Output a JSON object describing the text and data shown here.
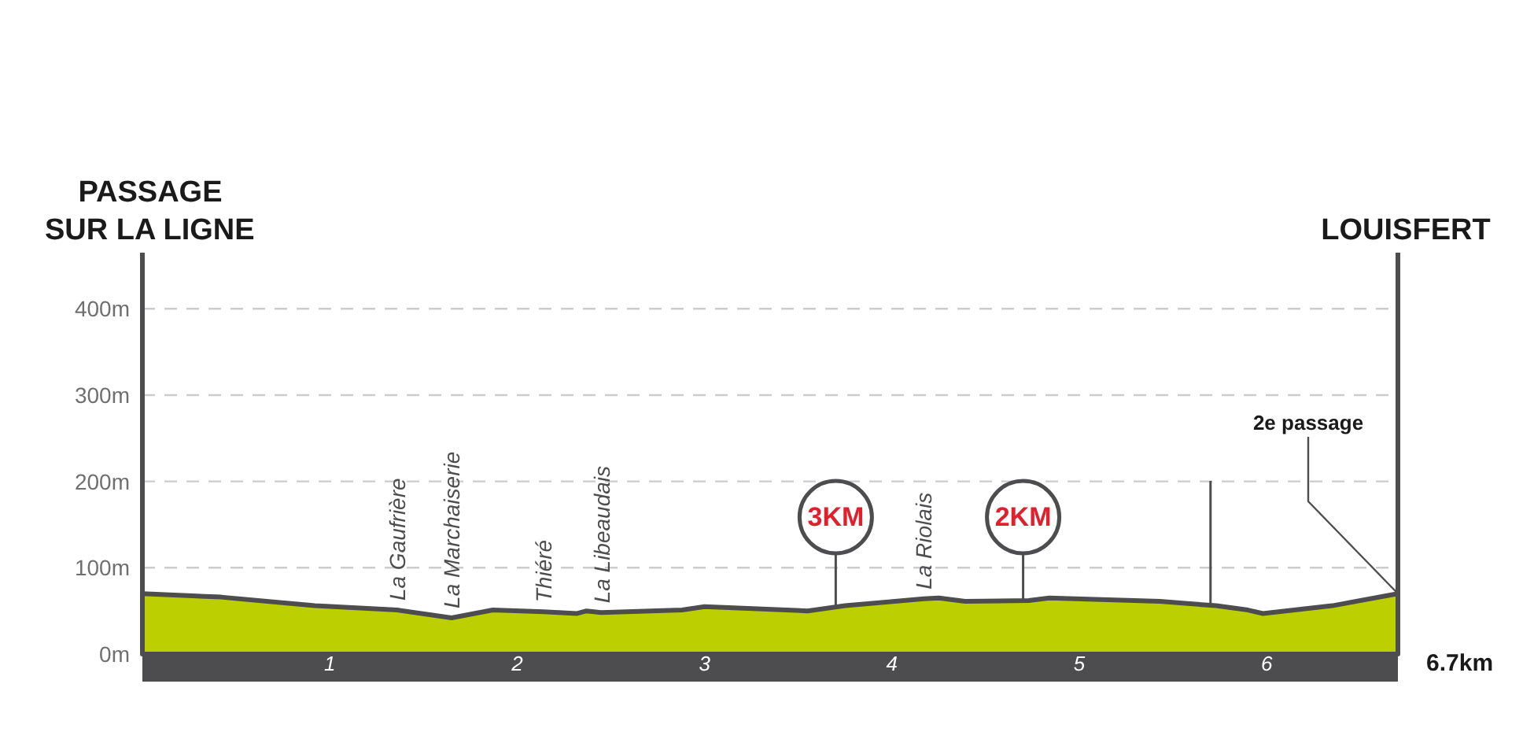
{
  "chart_data": {
    "type": "area",
    "color": "#bccf00",
    "x": [
      0,
      0.42,
      0.92,
      1.36,
      1.65,
      1.87,
      2.14,
      2.32,
      2.37,
      2.45,
      2.88,
      3.0,
      3.55,
      3.75,
      4.17,
      4.25,
      4.39,
      4.73,
      4.84,
      5.43,
      5.73,
      5.9,
      5.98,
      6.35,
      6.7
    ],
    "values": [
      70,
      66,
      56,
      51,
      42,
      51,
      49,
      47,
      50,
      48,
      51,
      55,
      50,
      56,
      64,
      65,
      61,
      62,
      65,
      61,
      56,
      51,
      47,
      56,
      70
    ],
    "xlim": [
      0,
      6.7
    ],
    "xticks": [
      1,
      2,
      3,
      4,
      5,
      6
    ],
    "ylim": [
      0,
      465
    ],
    "yticks": [
      {
        "value": 0,
        "label": "0m"
      },
      {
        "value": 100,
        "label": "100m"
      },
      {
        "value": 200,
        "label": "200m"
      },
      {
        "value": 300,
        "label": "300m"
      },
      {
        "value": 400,
        "label": "400m"
      }
    ],
    "grid": "y",
    "ref_lines": [
      {
        "axis": "x",
        "value": 3.7,
        "label": "3KM"
      },
      {
        "axis": "x",
        "value": 4.7,
        "label": "2KM"
      },
      {
        "axis": "x",
        "value": 5.7
      },
      {
        "axis": "x",
        "value": 6.7,
        "label": "LOUISFERT"
      }
    ],
    "annotations": [
      "PASSAGE SUR LA LIGNE",
      {
        "text": "La Gaufrière",
        "x": 1.36,
        "y": 51
      },
      {
        "text": "La Marchaiserie",
        "x": 1.65,
        "y": 42
      },
      {
        "text": "Thiéré",
        "x": 2.14,
        "y": 49
      },
      {
        "text": "La Libeaudais",
        "x": 2.45,
        "y": 48
      },
      {
        "text": "La Riolais",
        "x": 4.17,
        "y": 64
      },
      {
        "text": "2e passage",
        "x": 6.7,
        "y": 70
      },
      "6.7km"
    ]
  }
}
